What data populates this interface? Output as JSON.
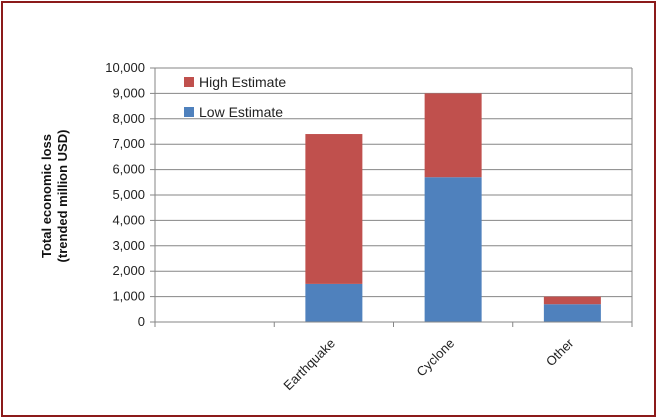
{
  "chart_data": {
    "type": "bar",
    "stacked": true,
    "categories": [
      "Earthquake",
      "Cyclone",
      "Other"
    ],
    "series": [
      {
        "name": "Low Estimate",
        "values": [
          1500,
          5700,
          700
        ],
        "color": "#4f81bd"
      },
      {
        "name": "High Estimate",
        "values": [
          5900,
          3300,
          300
        ],
        "color": "#c0504d"
      }
    ],
    "ylabel_line1": "Total economic loss",
    "ylabel_line2": "(trended million USD)",
    "ylim": [
      0,
      10000
    ],
    "yticks": [
      "0",
      "1,000",
      "2,000",
      "3,000",
      "4,000",
      "5,000",
      "6,000",
      "7,000",
      "8,000",
      "9,000",
      "10,000"
    ],
    "legend_order": [
      "High Estimate",
      "Low Estimate"
    ],
    "legend_position": "top-left",
    "grid": true,
    "axis_color": "#868686",
    "grid_color": "#868686",
    "frame_color": "#8b1a1a"
  }
}
